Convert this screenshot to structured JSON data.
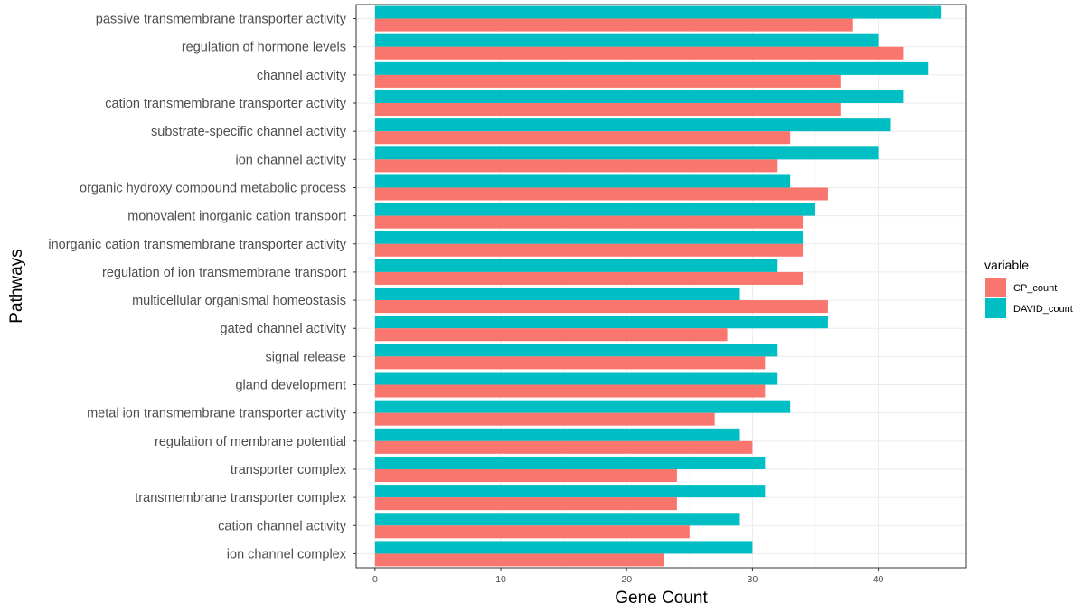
{
  "chart_data": {
    "type": "bar",
    "orientation": "horizontal",
    "categories": [
      "passive transmembrane transporter activity",
      "regulation of hormone levels",
      "channel activity",
      "cation transmembrane transporter activity",
      "substrate-specific channel activity",
      "ion channel activity",
      "organic hydroxy compound metabolic process",
      "monovalent inorganic cation transport",
      "inorganic cation transmembrane transporter activity",
      "regulation of ion transmembrane transport",
      "multicellular organismal homeostasis",
      "gated channel activity",
      "signal release",
      "gland development",
      "metal ion transmembrane transporter activity",
      "regulation of membrane potential",
      "transporter complex",
      "transmembrane transporter complex",
      "cation channel activity",
      "ion channel complex"
    ],
    "series": [
      {
        "name": "CP_count",
        "color": "#F8766D",
        "values": [
          38,
          42,
          37,
          37,
          33,
          32,
          36,
          34,
          34,
          34,
          36,
          28,
          31,
          31,
          27,
          30,
          24,
          24,
          25,
          23
        ]
      },
      {
        "name": "DAVID_count",
        "color": "#00BFC4",
        "values": [
          45,
          40,
          44,
          42,
          41,
          40,
          33,
          35,
          34,
          32,
          29,
          36,
          32,
          32,
          33,
          29,
          31,
          31,
          29,
          30
        ]
      }
    ],
    "xlabel": "Gene Count",
    "ylabel": "Pathways",
    "xlim": [
      -1.5,
      47
    ],
    "xticks": [
      "0",
      "10",
      "20",
      "30",
      "40"
    ],
    "xtick_values": [
      0,
      10,
      20,
      30,
      40
    ],
    "grid": true,
    "legend": {
      "title": "variable",
      "placement": "right"
    }
  }
}
